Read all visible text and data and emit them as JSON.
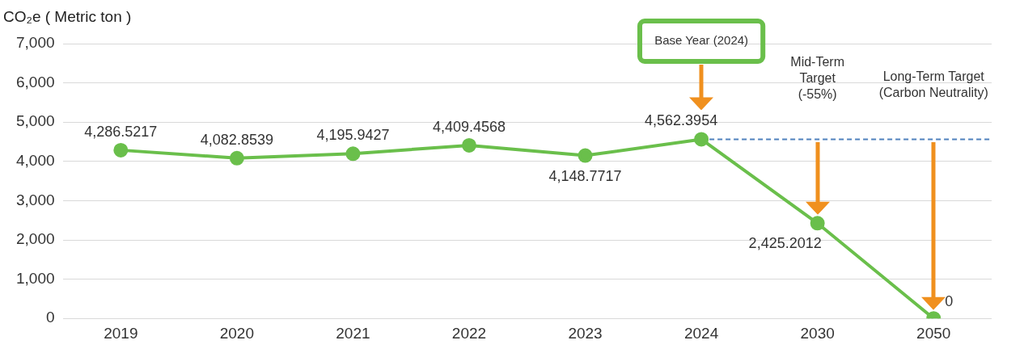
{
  "chart_data": {
    "type": "line",
    "ylabel": "CO₂e  ( Metric ton )",
    "categories": [
      "2019",
      "2020",
      "2021",
      "2022",
      "2023",
      "2024",
      "2030",
      "2050"
    ],
    "series": [
      {
        "color": "#6abf4b",
        "values": [
          4286.5217,
          4082.8539,
          4195.9427,
          4409.4568,
          4148.7717,
          4562.3954,
          2425.2012,
          0
        ],
        "value_labels": [
          "4,286.5217",
          "4,082.8539",
          "4,195.9427",
          "4,409.4568",
          "4,148.7717",
          "4,562.3954",
          "2,425.2012",
          "0"
        ]
      }
    ],
    "ylim": [
      0,
      7000
    ],
    "yticks": [
      {
        "value": 0,
        "label": "0"
      },
      {
        "value": 1000,
        "label": "1,000"
      },
      {
        "value": 2000,
        "label": "2,000"
      },
      {
        "value": 3000,
        "label": "3,000"
      },
      {
        "value": 4000,
        "label": "4,000"
      },
      {
        "value": 5000,
        "label": "5,000"
      },
      {
        "value": 6000,
        "label": "6,000"
      },
      {
        "value": 7000,
        "label": "7,000"
      }
    ],
    "grid": "y",
    "marker": "circle",
    "line_style": "solid",
    "legend": false,
    "ref_lines": [
      {
        "axis": "y",
        "value": 4562.3954,
        "color": "#4f81bd",
        "line_style": "dashed"
      }
    ],
    "annotations": [
      "Base Year (2024)",
      "Mid-Term Target (-55%)",
      "Long-Term Target (Carbon Neutrality)"
    ]
  }
}
